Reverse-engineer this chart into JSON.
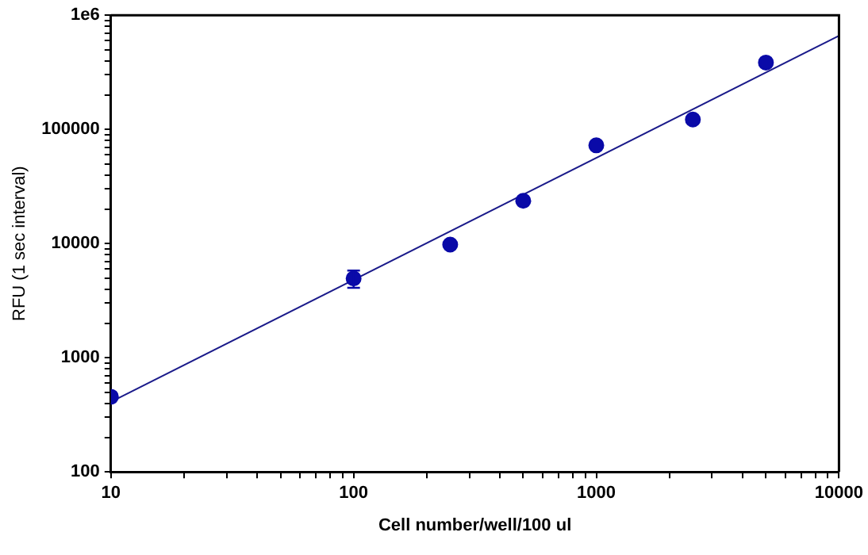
{
  "chart_data": {
    "type": "scatter",
    "xlabel": "Cell number/well/100 ul",
    "ylabel": "RFU (1 sec interval)",
    "log": "xy",
    "grid": false,
    "legend": false,
    "marker": "circle",
    "xlim": [
      10,
      10000
    ],
    "ylim": [
      100,
      1000000
    ],
    "xticks": [
      10,
      {
        "value": 20,
        "label": null
      },
      {
        "value": 30,
        "label": null
      },
      {
        "value": 40,
        "label": null
      },
      {
        "value": 50,
        "label": null
      },
      {
        "value": 60,
        "label": null
      },
      {
        "value": 70,
        "label": null
      },
      {
        "value": 80,
        "label": null
      },
      {
        "value": 90,
        "label": null
      },
      100,
      {
        "value": 200,
        "label": null
      },
      {
        "value": 300,
        "label": null
      },
      {
        "value": 400,
        "label": null
      },
      {
        "value": 500,
        "label": null
      },
      {
        "value": 600,
        "label": null
      },
      {
        "value": 700,
        "label": null
      },
      {
        "value": 800,
        "label": null
      },
      {
        "value": 900,
        "label": null
      },
      1000,
      {
        "value": 2000,
        "label": null
      },
      {
        "value": 3000,
        "label": null
      },
      {
        "value": 4000,
        "label": null
      },
      {
        "value": 5000,
        "label": null
      },
      {
        "value": 6000,
        "label": null
      },
      {
        "value": 7000,
        "label": null
      },
      {
        "value": 8000,
        "label": null
      },
      {
        "value": 9000,
        "label": null
      },
      10000
    ],
    "yticks": [
      100,
      {
        "value": 200,
        "label": null
      },
      {
        "value": 300,
        "label": null
      },
      {
        "value": 400,
        "label": null
      },
      {
        "value": 500,
        "label": null
      },
      {
        "value": 600,
        "label": null
      },
      {
        "value": 700,
        "label": null
      },
      {
        "value": 800,
        "label": null
      },
      {
        "value": 900,
        "label": null
      },
      1000,
      {
        "value": 2000,
        "label": null
      },
      {
        "value": 3000,
        "label": null
      },
      {
        "value": 4000,
        "label": null
      },
      {
        "value": 5000,
        "label": null
      },
      {
        "value": 6000,
        "label": null
      },
      {
        "value": 7000,
        "label": null
      },
      {
        "value": 8000,
        "label": null
      },
      {
        "value": 9000,
        "label": null
      },
      10000,
      {
        "value": 20000,
        "label": null
      },
      {
        "value": 30000,
        "label": null
      },
      {
        "value": 40000,
        "label": null
      },
      {
        "value": 50000,
        "label": null
      },
      {
        "value": 60000,
        "label": null
      },
      {
        "value": 70000,
        "label": null
      },
      {
        "value": 80000,
        "label": null
      },
      {
        "value": 90000,
        "label": null
      },
      100000,
      {
        "value": 200000,
        "label": null
      },
      {
        "value": 300000,
        "label": null
      },
      {
        "value": 400000,
        "label": null
      },
      {
        "value": 500000,
        "label": null
      },
      {
        "value": 600000,
        "label": null
      },
      {
        "value": 700000,
        "label": null
      },
      {
        "value": 800000,
        "label": null
      },
      {
        "value": 900000,
        "label": null
      },
      {
        "value": 1000000,
        "label": "1e6"
      }
    ],
    "series": [
      {
        "color": "#0a0aa8",
        "x": [
          10,
          100,
          250,
          500,
          1000,
          2500,
          5000
        ],
        "values": [
          455,
          4940,
          9800,
          23700,
          72500,
          122000,
          385000
        ],
        "errors": [
          null,
          [
            4100,
            5800
          ],
          null,
          null,
          null,
          null,
          null
        ]
      },
      {
        "type": "line",
        "color": "#1a1a8a",
        "x": [
          10,
          10000
        ],
        "values": [
          410,
          661000
        ],
        "marker": "none"
      }
    ]
  }
}
